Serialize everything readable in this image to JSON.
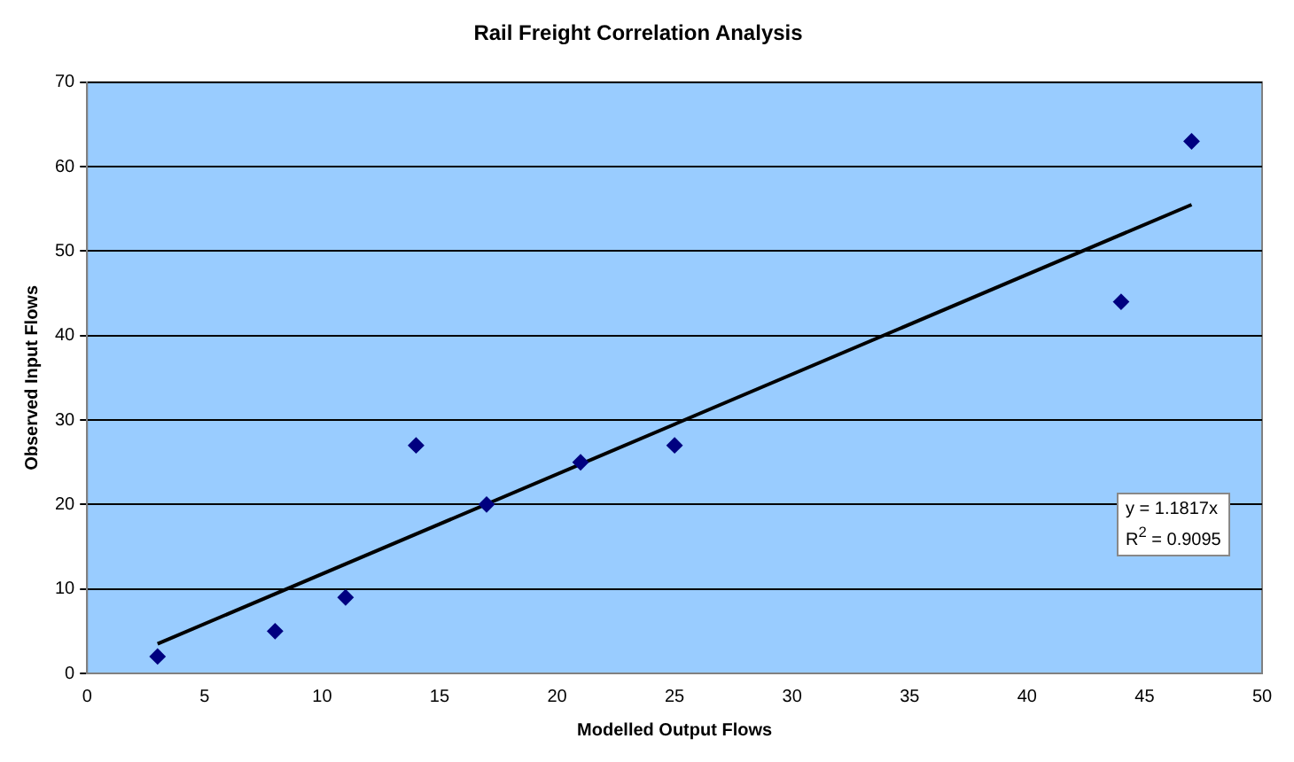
{
  "chart_data": {
    "type": "scatter",
    "title": "Rail Freight Correlation Analysis",
    "xlabel": "Modelled Output Flows",
    "ylabel": "Observed Input Flows",
    "series": [
      {
        "type": "scatter",
        "color": "#000080",
        "x": [
          3,
          8,
          11,
          14,
          17,
          21,
          25,
          44,
          47
        ],
        "values": [
          2,
          5,
          9,
          27,
          20,
          25,
          27,
          44,
          63
        ],
        "marker": "diamond"
      },
      {
        "type": "line",
        "color": "#000000",
        "x": [
          3,
          47
        ],
        "values": [
          3.5,
          55.5
        ],
        "marker": "none",
        "line_style": "solid"
      }
    ],
    "xlim": [
      0,
      50
    ],
    "xticks": [
      0,
      5,
      10,
      15,
      20,
      25,
      30,
      35,
      40,
      45,
      50
    ],
    "ylim": [
      0,
      70
    ],
    "yticks": [
      0,
      10,
      20,
      30,
      40,
      50,
      60,
      70
    ],
    "grid": "y",
    "legend": false,
    "annotations": [
      "y = 1.1817x",
      "R$^{2}$ = 0.9095"
    ]
  }
}
